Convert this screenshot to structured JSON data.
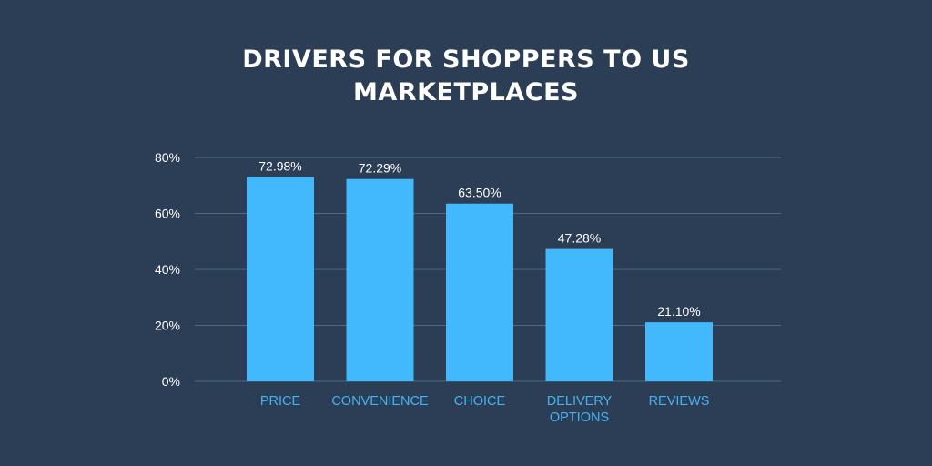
{
  "colors": {
    "background": "#2c3e55",
    "bar": "#42b8fd",
    "grid": "#4a6a86",
    "category_label": "#45b3f2",
    "text": "#ffffff"
  },
  "chart_data": {
    "type": "bar",
    "title_lines": [
      "DRIVERS FOR SHOPPERS TO US",
      "MARKETPLACES"
    ],
    "categories": [
      [
        "PRICE"
      ],
      [
        "CONVENIENCE"
      ],
      [
        "CHOICE"
      ],
      [
        "DELIVERY",
        "OPTIONS"
      ],
      [
        "REVIEWS"
      ]
    ],
    "values": [
      72.98,
      72.29,
      63.5,
      47.28,
      21.1
    ],
    "data_labels": [
      "72.98%",
      "72.29%",
      "63.50%",
      "47.28%",
      "21.10%"
    ],
    "yticks": [
      0,
      20,
      40,
      60,
      80
    ],
    "ytick_labels": [
      "0%",
      "20%",
      "40%",
      "60%",
      "80%"
    ],
    "ylim": [
      0,
      80
    ],
    "grid": true,
    "legend": "none"
  }
}
